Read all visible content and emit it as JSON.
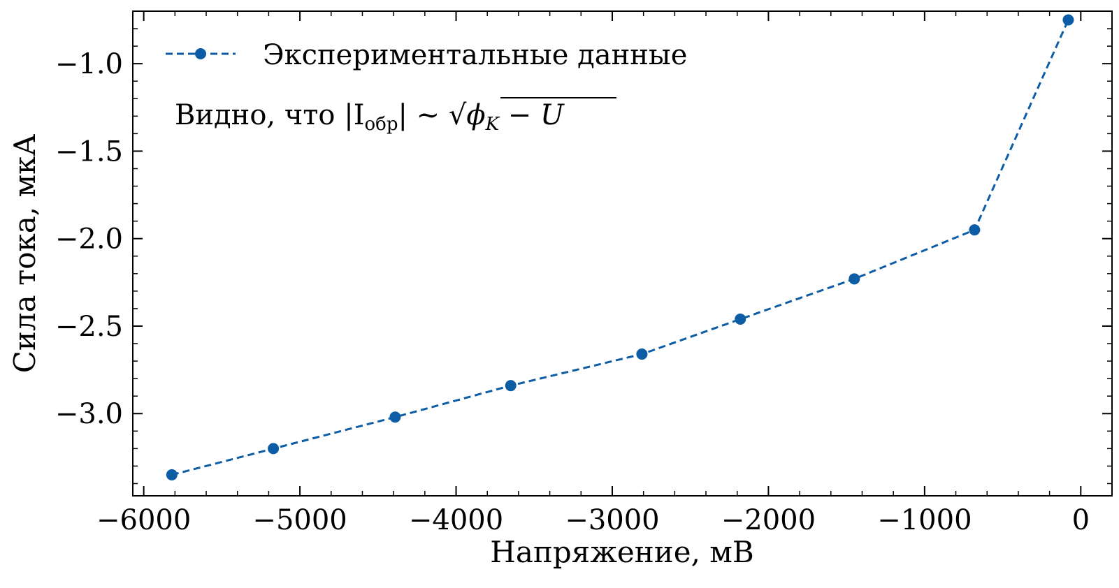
{
  "chart_data": {
    "type": "line",
    "xlabel": "Напряжение, мВ",
    "ylabel": "Сила тока, мкА",
    "xlim": [
      -6070,
      200
    ],
    "ylim": [
      -3.47,
      -0.7
    ],
    "x_ticks": [
      -6000,
      -5000,
      -4000,
      -3000,
      -2000,
      -1000,
      0
    ],
    "x_tick_labels": [
      "−6000",
      "−5000",
      "−4000",
      "−3000",
      "−2000",
      "−1000",
      "0"
    ],
    "y_ticks": [
      -1.0,
      -1.5,
      -2.0,
      -2.5,
      -3.0
    ],
    "y_tick_labels": [
      "−1.0",
      "−1.5",
      "−2.0",
      "−2.5",
      "−3.0"
    ],
    "grid": false,
    "legend_position": "top-left",
    "series": [
      {
        "name": "Экспериментальные данные",
        "color": "#0C5DA5",
        "line_style": "dashed",
        "marker": "circle",
        "x": [
          -5820,
          -5170,
          -4390,
          -3650,
          -2810,
          -2180,
          -1450,
          -680,
          -80
        ],
        "y": [
          -3.35,
          -3.2,
          -3.02,
          -2.84,
          -2.66,
          -2.46,
          -2.23,
          -1.95,
          -0.75
        ]
      }
    ],
    "annotation": {
      "prefix": "Видно, что |I",
      "subscript": "обр",
      "middle": "| ~ ",
      "radicand": "ϕ",
      "radicand_sub": "K",
      "radicand_tail": " − U"
    }
  }
}
